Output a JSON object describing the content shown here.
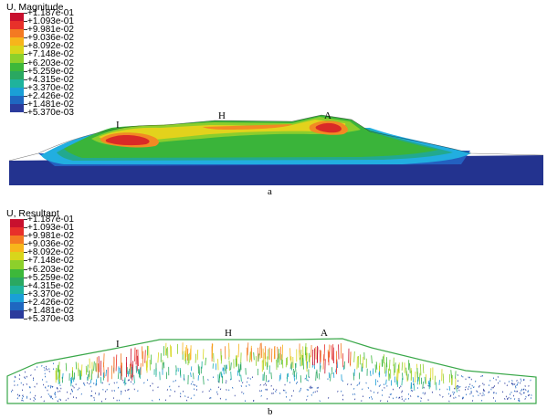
{
  "legend_colors": [
    "#c8102e",
    "#e8302a",
    "#f47a22",
    "#f7b51b",
    "#d8d61b",
    "#8dd02b",
    "#3db83a",
    "#2aa861",
    "#1fb39c",
    "#1a9fd6",
    "#1f67c0",
    "#2b3b9c"
  ],
  "panel_a": {
    "legend_title": "U, Magnitude",
    "legend_values": [
      "+1.187e-01",
      "+1.093e-01",
      "+9.981e-02",
      "+9.036e-02",
      "+8.092e-02",
      "+7.148e-02",
      "+6.203e-02",
      "+5.259e-02",
      "+4.315e-02",
      "+3.370e-02",
      "+2.426e-02",
      "+1.481e-02",
      "+5.370e-03"
    ],
    "points": {
      "I": "I",
      "H": "H",
      "A": "A"
    },
    "caption": "a"
  },
  "panel_b": {
    "legend_title": "U, Resultant",
    "legend_values": [
      "+1.187e-01",
      "+1.093e-01",
      "+9.981e-02",
      "+9.036e-02",
      "+8.092e-02",
      "+7.148e-02",
      "+6.203e-02",
      "+5.259e-02",
      "+4.315e-02",
      "+3.370e-02",
      "+2.426e-02",
      "+1.481e-02",
      "+5.370e-03"
    ],
    "points": {
      "I": "I",
      "H": "H",
      "A": "A"
    },
    "caption": "b"
  }
}
